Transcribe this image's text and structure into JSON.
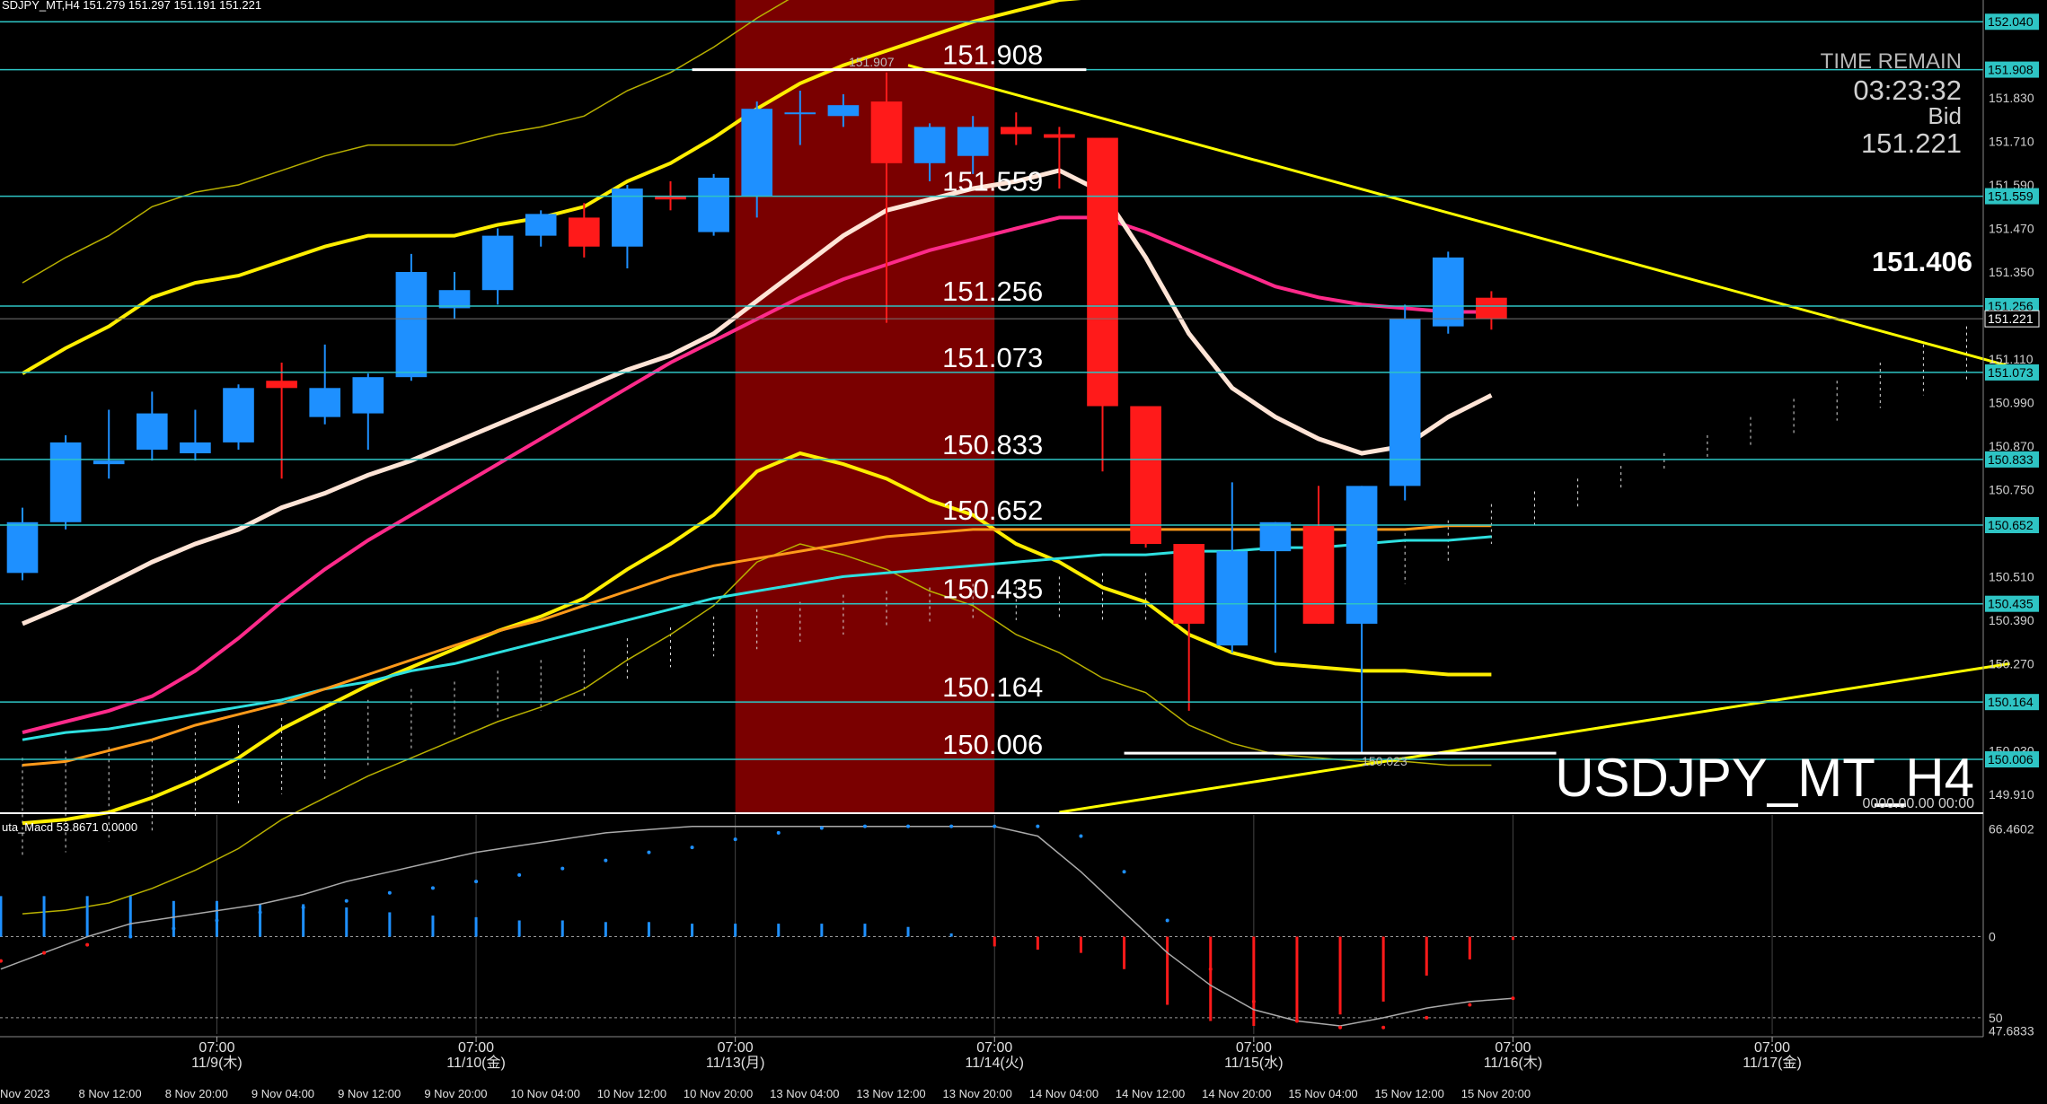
{
  "header": {
    "symbol_line": "SDJPY_MT,H4  151.279 151.297 151.191 151.221"
  },
  "panel": {
    "time_remain_label": "TIME REMAIN",
    "time_remain_value": "03:23:32",
    "bid_label": "Bid",
    "bid_value": "151.221",
    "big_price": "151.406",
    "watermark": "USDJPY_MT_H4",
    "zero_time": "0000.00.00 00:00"
  },
  "colors": {
    "background": "#000000",
    "bull": "#1e90ff",
    "bear": "#ff1a1a",
    "highlight": "#7a0000",
    "hline": "#2ec4c4",
    "trend": "#ffff00",
    "ma_white": "#ffe4d6",
    "ma_pink": "#ff2a8a",
    "ma_orange": "#ff9a1a",
    "ma_cyan": "#2ee0e0",
    "macd_line": "#aaaaaa"
  },
  "chart_data": {
    "type": "candlestick",
    "symbol": "USDJPY_MT",
    "timeframe": "H4",
    "ylim": [
      149.86,
      152.1
    ],
    "y_ticks": [
      "152.040",
      "151.908",
      "151.830",
      "151.710",
      "151.590",
      "151.559",
      "151.470",
      "151.350",
      "151.256",
      "151.221",
      "151.110",
      "151.073",
      "150.990",
      "150.870",
      "150.833",
      "150.750",
      "150.652",
      "150.510",
      "150.435",
      "150.390",
      "150.270",
      "150.164",
      "150.030",
      "150.006",
      "149.910"
    ],
    "h_levels": [
      {
        "value": 152.04,
        "label": "152.040"
      },
      {
        "value": 151.908,
        "label": "151.908"
      },
      {
        "value": 151.559,
        "label": "151.559"
      },
      {
        "value": 151.256,
        "label": "151.256"
      },
      {
        "value": 151.073,
        "label": "151.073"
      },
      {
        "value": 150.833,
        "label": "150.833"
      },
      {
        "value": 150.652,
        "label": "150.652"
      },
      {
        "value": 150.435,
        "label": "150.435"
      },
      {
        "value": 150.164,
        "label": "150.164"
      },
      {
        "value": 150.006,
        "label": "150.006"
      }
    ],
    "markers": [
      {
        "label": "151.907",
        "value": 151.907
      },
      {
        "label": "150.023",
        "value": 150.023
      }
    ],
    "current_price": {
      "label": "151.221",
      "value": 151.221
    },
    "x_time_labels": [
      {
        "slot": 4.5,
        "time": "07:00",
        "date": "11/9(木)"
      },
      {
        "slot": 10.5,
        "time": "07:00",
        "date": "11/10(金)"
      },
      {
        "slot": 16.5,
        "time": "07:00",
        "date": "11/13(月)"
      },
      {
        "slot": 22.5,
        "time": "07:00",
        "date": "11/14(火)"
      },
      {
        "slot": 28.5,
        "time": "07:00",
        "date": "11/15(水)"
      },
      {
        "slot": 34.5,
        "time": "07:00",
        "date": "11/16(木)"
      },
      {
        "slot": 40.5,
        "time": "07:00",
        "date": "11/17(金)"
      }
    ],
    "x_date_labels": [
      "Nov 2023",
      "8 Nov 12:00",
      "8 Nov 20:00",
      "9 Nov 04:00",
      "9 Nov 12:00",
      "9 Nov 20:00",
      "10 Nov 04:00",
      "10 Nov 12:00",
      "10 Nov 20:00",
      "13 Nov 04:00",
      "13 Nov 12:00",
      "13 Nov 20:00",
      "14 Nov 04:00",
      "14 Nov 12:00",
      "14 Nov 20:00",
      "15 Nov 04:00",
      "15 Nov 12:00",
      "15 Nov 20:00"
    ],
    "highlight_slots": [
      16.5,
      22.5
    ],
    "candles": [
      {
        "o": 150.52,
        "h": 150.7,
        "l": 150.5,
        "c": 150.66
      },
      {
        "o": 150.66,
        "h": 150.9,
        "l": 150.64,
        "c": 150.88
      },
      {
        "o": 150.82,
        "h": 150.97,
        "l": 150.78,
        "c": 150.83
      },
      {
        "o": 150.86,
        "h": 151.02,
        "l": 150.83,
        "c": 150.96
      },
      {
        "o": 150.85,
        "h": 150.97,
        "l": 150.83,
        "c": 150.88
      },
      {
        "o": 150.88,
        "h": 151.04,
        "l": 150.86,
        "c": 151.03
      },
      {
        "o": 151.05,
        "h": 151.1,
        "l": 150.78,
        "c": 151.03
      },
      {
        "o": 150.95,
        "h": 151.15,
        "l": 150.93,
        "c": 151.03
      },
      {
        "o": 150.96,
        "h": 151.07,
        "l": 150.86,
        "c": 151.06
      },
      {
        "o": 151.06,
        "h": 151.4,
        "l": 151.05,
        "c": 151.35
      },
      {
        "o": 151.25,
        "h": 151.35,
        "l": 151.22,
        "c": 151.3
      },
      {
        "o": 151.3,
        "h": 151.47,
        "l": 151.26,
        "c": 151.45
      },
      {
        "o": 151.45,
        "h": 151.52,
        "l": 151.42,
        "c": 151.51
      },
      {
        "o": 151.5,
        "h": 151.54,
        "l": 151.39,
        "c": 151.42
      },
      {
        "o": 151.42,
        "h": 151.59,
        "l": 151.36,
        "c": 151.58
      },
      {
        "o": 151.56,
        "h": 151.6,
        "l": 151.52,
        "c": 151.55
      },
      {
        "o": 151.46,
        "h": 151.62,
        "l": 151.45,
        "c": 151.61
      },
      {
        "o": 151.56,
        "h": 151.82,
        "l": 151.5,
        "c": 151.8
      },
      {
        "o": 151.79,
        "h": 151.85,
        "l": 151.7,
        "c": 151.79
      },
      {
        "o": 151.78,
        "h": 151.84,
        "l": 151.75,
        "c": 151.81
      },
      {
        "o": 151.82,
        "h": 151.9,
        "l": 151.21,
        "c": 151.65
      },
      {
        "o": 151.65,
        "h": 151.76,
        "l": 151.6,
        "c": 151.75
      },
      {
        "o": 151.67,
        "h": 151.78,
        "l": 151.62,
        "c": 151.75
      },
      {
        "o": 151.75,
        "h": 151.79,
        "l": 151.7,
        "c": 151.73
      },
      {
        "o": 151.73,
        "h": 151.75,
        "l": 151.58,
        "c": 151.72
      },
      {
        "o": 151.72,
        "h": 151.72,
        "l": 150.8,
        "c": 150.98
      },
      {
        "o": 150.98,
        "h": 150.98,
        "l": 150.59,
        "c": 150.6
      },
      {
        "o": 150.6,
        "h": 150.6,
        "l": 150.14,
        "c": 150.38
      },
      {
        "o": 150.32,
        "h": 150.77,
        "l": 150.3,
        "c": 150.58
      },
      {
        "o": 150.58,
        "h": 150.66,
        "l": 150.3,
        "c": 150.66
      },
      {
        "o": 150.65,
        "h": 150.76,
        "l": 150.38,
        "c": 150.38
      },
      {
        "o": 150.38,
        "h": 150.76,
        "l": 150.023,
        "c": 150.76
      },
      {
        "o": 150.76,
        "h": 151.26,
        "l": 150.72,
        "c": 151.22
      },
      {
        "o": 151.2,
        "h": 151.406,
        "l": 151.18,
        "c": 151.39
      },
      {
        "o": 151.279,
        "h": 151.297,
        "l": 151.191,
        "c": 151.221
      }
    ],
    "ma_white": [
      150.38,
      150.43,
      150.49,
      150.55,
      150.6,
      150.64,
      150.7,
      150.74,
      150.79,
      150.83,
      150.88,
      150.93,
      150.98,
      151.03,
      151.08,
      151.12,
      151.18,
      151.27,
      151.36,
      151.45,
      151.52,
      151.55,
      151.58,
      151.6,
      151.63,
      151.57,
      151.39,
      151.18,
      151.03,
      150.95,
      150.89,
      150.85,
      150.87,
      150.95,
      151.01
    ],
    "ma_pink": [
      150.08,
      150.11,
      150.14,
      150.18,
      150.25,
      150.34,
      150.44,
      150.53,
      150.61,
      150.68,
      150.75,
      150.82,
      150.89,
      150.96,
      151.03,
      151.1,
      151.16,
      151.22,
      151.28,
      151.33,
      151.37,
      151.41,
      151.44,
      151.47,
      151.5,
      151.5,
      151.46,
      151.41,
      151.36,
      151.31,
      151.28,
      151.26,
      151.25,
      151.24,
      151.24
    ],
    "ma_orange": [
      149.99,
      150.0,
      150.03,
      150.06,
      150.1,
      150.13,
      150.16,
      150.2,
      150.24,
      150.28,
      150.32,
      150.36,
      150.39,
      150.43,
      150.47,
      150.51,
      150.54,
      150.56,
      150.58,
      150.6,
      150.62,
      150.63,
      150.64,
      150.64,
      150.64,
      150.64,
      150.64,
      150.64,
      150.64,
      150.64,
      150.64,
      150.64,
      150.64,
      150.65,
      150.65
    ],
    "ma_cyan": [
      150.06,
      150.08,
      150.09,
      150.11,
      150.13,
      150.15,
      150.17,
      150.2,
      150.22,
      150.25,
      150.27,
      150.3,
      150.33,
      150.36,
      150.39,
      150.42,
      150.45,
      150.47,
      150.49,
      150.51,
      150.52,
      150.53,
      150.54,
      150.55,
      150.56,
      150.57,
      150.57,
      150.58,
      150.58,
      150.59,
      150.59,
      150.6,
      150.61,
      150.61,
      150.62
    ],
    "bb_upper": [
      151.07,
      151.14,
      151.2,
      151.28,
      151.32,
      151.34,
      151.38,
      151.42,
      151.45,
      151.45,
      151.45,
      151.48,
      151.5,
      151.53,
      151.6,
      151.65,
      151.72,
      151.8,
      151.87,
      151.92,
      151.96,
      152.0,
      152.04,
      152.07,
      152.1,
      152.11,
      152.13,
      152.16,
      152.2,
      152.25,
      152.3,
      152.37,
      152.45,
      152.55,
      152.65
    ],
    "bb_lower": [
      149.83,
      149.84,
      149.86,
      149.9,
      149.95,
      150.01,
      150.09,
      150.15,
      150.21,
      150.26,
      150.31,
      150.36,
      150.4,
      150.45,
      150.53,
      150.6,
      150.68,
      150.8,
      150.85,
      150.82,
      150.78,
      150.72,
      150.68,
      150.6,
      150.55,
      150.48,
      150.44,
      150.35,
      150.3,
      150.27,
      150.26,
      150.25,
      150.25,
      150.24,
      150.24
    ],
    "trend_lines": [
      {
        "slot1": 20.5,
        "y1": 151.92,
        "slot2": 46,
        "y2": 151.09
      },
      {
        "slot1": 24,
        "y1": 149.86,
        "slot2": 46,
        "y2": 150.27
      }
    ],
    "macd": {
      "label": "uta_Macd 53.8671  0.0000",
      "ylim": [
        -60,
        75
      ],
      "tick_top": "66.4602",
      "tick_zero": "0",
      "tick_m50": "50",
      "tick_bottom": "47.6833",
      "hist": [
        25,
        25,
        25,
        25,
        22,
        22,
        20,
        20,
        18,
        15,
        13,
        12,
        10,
        10,
        9,
        9,
        8,
        8,
        8,
        8,
        8,
        6,
        2,
        -6,
        -8,
        -10,
        -20,
        -42,
        -52,
        -55,
        -52,
        -48,
        -40,
        -24,
        -14,
        -2
      ],
      "signal": [
        -15,
        -10,
        -5,
        0,
        5,
        10,
        15,
        18,
        22,
        27,
        30,
        34,
        38,
        42,
        47,
        52,
        55,
        60,
        64,
        67,
        68,
        68,
        68,
        68,
        68,
        62,
        40,
        10,
        -20,
        -40,
        -52,
        -56,
        -56,
        -50,
        -42,
        -38
      ],
      "line": [
        -20,
        -10,
        0,
        8,
        12,
        16,
        20,
        26,
        34,
        40,
        46,
        52,
        56,
        60,
        64,
        66,
        68,
        68,
        68,
        68,
        68,
        68,
        68,
        68,
        62,
        40,
        15,
        -10,
        -30,
        -45,
        -52,
        -55,
        -50,
        -44,
        -40,
        -38
      ]
    }
  }
}
